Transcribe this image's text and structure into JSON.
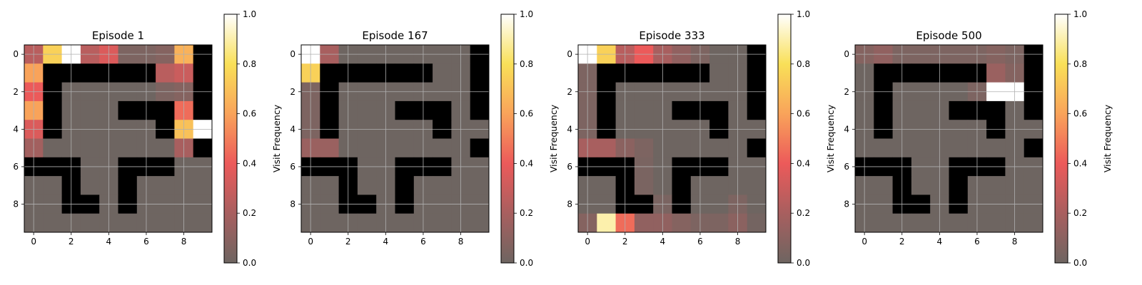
{
  "chart_data": [
    {
      "type": "heatmap",
      "title": "Episode 1",
      "colorbar_label": "Visit Frequency",
      "colorbar_ticks": [
        "0.0",
        "0.2",
        "0.4",
        "0.6",
        "0.8",
        "1.0"
      ],
      "xticks": [
        "0",
        "2",
        "4",
        "6",
        "8"
      ],
      "yticks": [
        "0",
        "2",
        "4",
        "6",
        "8"
      ],
      "grid": true,
      "colormap": "hot (grey-tinted at 0)",
      "wall_color": "#000000",
      "walls": [
        [
          0,
          9
        ],
        [
          1,
          1
        ],
        [
          1,
          2
        ],
        [
          1,
          3
        ],
        [
          1,
          4
        ],
        [
          1,
          5
        ],
        [
          1,
          6
        ],
        [
          1,
          9
        ],
        [
          2,
          1
        ],
        [
          2,
          9
        ],
        [
          3,
          1
        ],
        [
          3,
          5
        ],
        [
          3,
          6
        ],
        [
          3,
          7
        ],
        [
          3,
          9
        ],
        [
          4,
          1
        ],
        [
          4,
          7
        ],
        [
          5,
          9
        ],
        [
          6,
          0
        ],
        [
          6,
          1
        ],
        [
          6,
          2
        ],
        [
          6,
          5
        ],
        [
          6,
          6
        ],
        [
          6,
          7
        ],
        [
          7,
          2
        ],
        [
          7,
          5
        ],
        [
          8,
          2
        ],
        [
          8,
          3
        ],
        [
          8,
          5
        ]
      ],
      "z": [
        [
          0.25,
          0.75,
          1.0,
          0.25,
          0.35,
          0.05,
          0.05,
          0.08,
          0.65,
          0
        ],
        [
          0.6,
          0,
          0,
          0,
          0,
          0,
          0,
          0.25,
          0.3,
          0
        ],
        [
          0.4,
          0,
          0,
          0,
          0,
          0,
          0,
          0.05,
          0.08,
          0
        ],
        [
          0.6,
          0,
          0,
          0,
          0,
          0,
          0,
          0,
          0.45,
          0
        ],
        [
          0.35,
          0,
          0,
          0,
          0,
          0,
          0,
          0,
          0.7,
          1.0
        ],
        [
          0.18,
          0,
          0,
          0,
          0,
          0,
          0,
          0,
          0.2,
          0
        ],
        [
          0,
          0,
          0,
          0,
          0,
          0,
          0,
          0,
          0,
          0
        ],
        [
          0,
          0,
          0,
          0,
          0,
          0,
          0,
          0,
          0,
          0
        ],
        [
          0,
          0,
          0,
          0,
          0,
          0,
          0,
          0,
          0,
          0
        ],
        [
          0,
          0,
          0,
          0,
          0,
          0,
          0,
          0,
          0,
          0
        ]
      ]
    },
    {
      "type": "heatmap",
      "title": "Episode 167",
      "colorbar_label": "Visit Frequency",
      "colorbar_ticks": [
        "0.0",
        "0.2",
        "0.4",
        "0.6",
        "0.8",
        "1.0"
      ],
      "xticks": [
        "0",
        "2",
        "4",
        "6",
        "8"
      ],
      "yticks": [
        "0",
        "2",
        "4",
        "6",
        "8"
      ],
      "grid": true,
      "colormap": "hot (grey-tinted at 0)",
      "wall_color": "#000000",
      "walls": [
        [
          0,
          9
        ],
        [
          1,
          1
        ],
        [
          1,
          2
        ],
        [
          1,
          3
        ],
        [
          1,
          4
        ],
        [
          1,
          5
        ],
        [
          1,
          6
        ],
        [
          1,
          9
        ],
        [
          2,
          1
        ],
        [
          2,
          9
        ],
        [
          3,
          1
        ],
        [
          3,
          5
        ],
        [
          3,
          6
        ],
        [
          3,
          7
        ],
        [
          3,
          9
        ],
        [
          4,
          1
        ],
        [
          4,
          7
        ],
        [
          5,
          9
        ],
        [
          6,
          0
        ],
        [
          6,
          1
        ],
        [
          6,
          2
        ],
        [
          6,
          5
        ],
        [
          6,
          6
        ],
        [
          6,
          7
        ],
        [
          7,
          2
        ],
        [
          7,
          5
        ],
        [
          8,
          2
        ],
        [
          8,
          3
        ],
        [
          8,
          5
        ]
      ],
      "z": [
        [
          1.0,
          0.2,
          0,
          0,
          0,
          0,
          0,
          0,
          0,
          0
        ],
        [
          0.75,
          0,
          0,
          0,
          0,
          0,
          0,
          0,
          0,
          0
        ],
        [
          0.05,
          0,
          0,
          0,
          0,
          0,
          0,
          0,
          0,
          0
        ],
        [
          0.05,
          0,
          0,
          0,
          0,
          0,
          0,
          0,
          0,
          0
        ],
        [
          0.05,
          0,
          0,
          0,
          0,
          0,
          0,
          0,
          0,
          0
        ],
        [
          0.15,
          0.15,
          0,
          0,
          0,
          0,
          0,
          0,
          0,
          0
        ],
        [
          0,
          0,
          0,
          0,
          0,
          0,
          0,
          0,
          0,
          0
        ],
        [
          0,
          0,
          0,
          0,
          0,
          0,
          0,
          0,
          0,
          0
        ],
        [
          0,
          0,
          0,
          0,
          0,
          0,
          0,
          0,
          0,
          0
        ],
        [
          0,
          0,
          0,
          0,
          0,
          0,
          0,
          0,
          0,
          0
        ]
      ]
    },
    {
      "type": "heatmap",
      "title": "Episode 333",
      "colorbar_label": "Visit Frequency",
      "colorbar_ticks": [
        "0.0",
        "0.2",
        "0.4",
        "0.6",
        "0.8",
        "1.0"
      ],
      "xticks": [
        "0",
        "2",
        "4",
        "6",
        "8"
      ],
      "yticks": [
        "0",
        "2",
        "4",
        "6",
        "8"
      ],
      "grid": true,
      "colormap": "hot (grey-tinted at 0)",
      "wall_color": "#000000",
      "walls": [
        [
          0,
          9
        ],
        [
          1,
          1
        ],
        [
          1,
          2
        ],
        [
          1,
          3
        ],
        [
          1,
          4
        ],
        [
          1,
          5
        ],
        [
          1,
          6
        ],
        [
          1,
          9
        ],
        [
          2,
          1
        ],
        [
          2,
          9
        ],
        [
          3,
          1
        ],
        [
          3,
          5
        ],
        [
          3,
          6
        ],
        [
          3,
          7
        ],
        [
          3,
          9
        ],
        [
          4,
          1
        ],
        [
          4,
          7
        ],
        [
          5,
          9
        ],
        [
          6,
          0
        ],
        [
          6,
          1
        ],
        [
          6,
          2
        ],
        [
          6,
          5
        ],
        [
          6,
          6
        ],
        [
          6,
          7
        ],
        [
          7,
          2
        ],
        [
          7,
          5
        ],
        [
          8,
          2
        ],
        [
          8,
          3
        ],
        [
          8,
          5
        ]
      ],
      "z": [
        [
          1.0,
          0.75,
          0.25,
          0.4,
          0.2,
          0.12,
          0.05,
          0,
          0,
          0
        ],
        [
          0.05,
          0,
          0,
          0,
          0,
          0,
          0,
          0,
          0,
          0
        ],
        [
          0.05,
          0,
          0,
          0,
          0,
          0,
          0,
          0,
          0,
          0
        ],
        [
          0.05,
          0,
          0,
          0,
          0,
          0,
          0,
          0,
          0,
          0
        ],
        [
          0.05,
          0,
          0,
          0,
          0,
          0,
          0,
          0,
          0,
          0
        ],
        [
          0.2,
          0.2,
          0.1,
          0.05,
          0,
          0,
          0,
          0,
          0,
          0
        ],
        [
          0,
          0,
          0,
          0.04,
          0,
          0,
          0,
          0,
          0,
          0
        ],
        [
          0,
          0,
          0,
          0.04,
          0,
          0,
          0,
          0,
          0,
          0
        ],
        [
          0,
          0,
          0,
          0,
          0.04,
          0,
          0,
          0,
          0.05,
          0
        ],
        [
          0.08,
          0.9,
          0.45,
          0.12,
          0.12,
          0.08,
          0.05,
          0.05,
          0.1,
          0.02
        ]
      ]
    },
    {
      "type": "heatmap",
      "title": "Episode 500",
      "colorbar_label": "Visit Frequency",
      "colorbar_ticks": [
        "0.0",
        "0.2",
        "0.4",
        "0.6",
        "0.8",
        "1.0"
      ],
      "xticks": [
        "0",
        "2",
        "4",
        "6",
        "8"
      ],
      "yticks": [
        "0",
        "2",
        "4",
        "6",
        "8"
      ],
      "grid": true,
      "colormap": "hot (grey-tinted at 0)",
      "wall_color": "#000000",
      "walls": [
        [
          0,
          9
        ],
        [
          1,
          1
        ],
        [
          1,
          2
        ],
        [
          1,
          3
        ],
        [
          1,
          4
        ],
        [
          1,
          5
        ],
        [
          1,
          6
        ],
        [
          1,
          9
        ],
        [
          2,
          1
        ],
        [
          2,
          9
        ],
        [
          3,
          1
        ],
        [
          3,
          5
        ],
        [
          3,
          6
        ],
        [
          3,
          7
        ],
        [
          3,
          9
        ],
        [
          4,
          1
        ],
        [
          4,
          7
        ],
        [
          5,
          9
        ],
        [
          6,
          0
        ],
        [
          6,
          1
        ],
        [
          6,
          2
        ],
        [
          6,
          5
        ],
        [
          6,
          6
        ],
        [
          6,
          7
        ],
        [
          7,
          2
        ],
        [
          7,
          5
        ],
        [
          8,
          2
        ],
        [
          8,
          3
        ],
        [
          8,
          5
        ]
      ],
      "z": [
        [
          0.08,
          0.12,
          0.05,
          0.05,
          0.05,
          0.05,
          0.05,
          0.08,
          0.05,
          0
        ],
        [
          0,
          0,
          0,
          0,
          0,
          0,
          0,
          0.15,
          0.08,
          0
        ],
        [
          0,
          0,
          0,
          0,
          0,
          0,
          0.05,
          1.0,
          1.0,
          0
        ],
        [
          0,
          0,
          0,
          0,
          0,
          0,
          0,
          0,
          0,
          0
        ],
        [
          0,
          0,
          0,
          0,
          0,
          0,
          0,
          0,
          0,
          0
        ],
        [
          0,
          0,
          0,
          0,
          0,
          0,
          0,
          0,
          0,
          0
        ],
        [
          0,
          0,
          0,
          0,
          0,
          0,
          0,
          0,
          0,
          0
        ],
        [
          0,
          0,
          0,
          0,
          0,
          0,
          0,
          0,
          0,
          0
        ],
        [
          0,
          0,
          0,
          0,
          0,
          0,
          0,
          0,
          0,
          0
        ],
        [
          0,
          0,
          0,
          0,
          0,
          0,
          0,
          0,
          0,
          0
        ]
      ]
    }
  ]
}
